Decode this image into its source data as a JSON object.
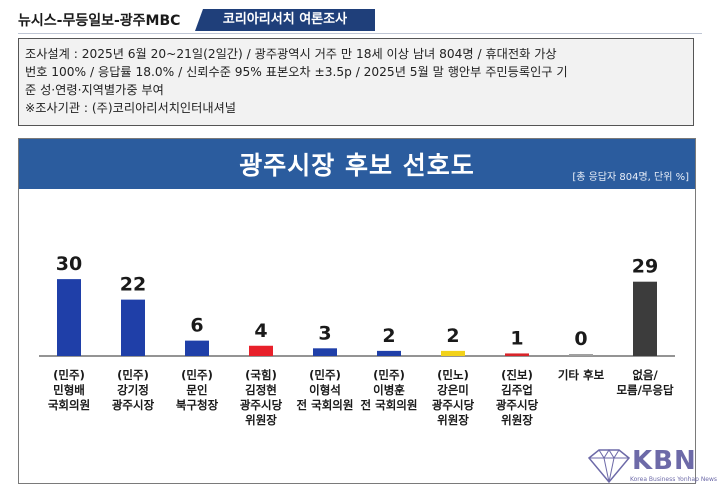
{
  "header": {
    "source": "뉴시스-무등일보-광주MBC",
    "tag": "코리아리서치  여론조사"
  },
  "survey_info": {
    "line1": "조사설계 : 2025년 6월 20~21일(2일간) / 광주광역시 거주 만 18세 이상 남녀 804명 / 휴대전화 가상",
    "line2": "번호 100% / 응답률 18.0% / 신뢰수준 95% 표본오차 ±3.5p / 2025년 5월 말 행안부 주민등록인구 기",
    "line3": "준 성·연령·지역별가중 부여",
    "line4": "※조사기관 : (주)코리아리서치인터내셔널"
  },
  "chart_data": {
    "type": "bar",
    "title": "광주시장 후보 선호도",
    "note": "[총 응답자 804명, 단위 %]",
    "categories": [
      [
        "(민주)",
        "민형배",
        "국회의원"
      ],
      [
        "(민주)",
        "강기정",
        "광주시장"
      ],
      [
        "(민주)",
        "문인",
        "북구청장"
      ],
      [
        "(국힘)",
        "김정현",
        "광주시당",
        "위원장"
      ],
      [
        "(민주)",
        "이형석",
        "전 국회의원"
      ],
      [
        "(민주)",
        "이병훈",
        "전 국회의원"
      ],
      [
        "(민노)",
        "강은미",
        "광주시당",
        "위원장"
      ],
      [
        "(진보)",
        "김주업",
        "광주시당",
        "위원장"
      ],
      [
        "기타 후보"
      ],
      [
        "없음/",
        "모름/무응답"
      ]
    ],
    "values": [
      30,
      22,
      6,
      4,
      3,
      2,
      2,
      1,
      0,
      29
    ],
    "labels": [
      "30",
      "22",
      "6",
      "4",
      "3",
      "2",
      "2",
      "1",
      "0",
      "29"
    ],
    "colors": [
      "#1f3fa8",
      "#1f3fa8",
      "#1f3fa8",
      "#e8202a",
      "#1f3fa8",
      "#1f3fa8",
      "#f2d21a",
      "#d8242a",
      "#a0a0a0",
      "#3c3c3c"
    ],
    "ylim": [
      0,
      32
    ]
  },
  "logo": {
    "name": "KBN",
    "sub": "Korea Business Yonhap News"
  }
}
